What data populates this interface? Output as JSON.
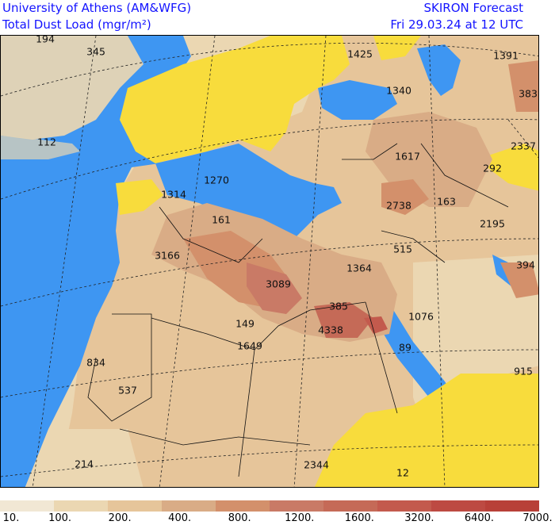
{
  "header": {
    "institution": "University of Athens (AM&WFG)",
    "product": "Total Dust Load (mgr/m²)",
    "forecast": "SKIRON Forecast",
    "valid_time": "Fri 29.03.24 at 12 UTC"
  },
  "map": {
    "labels": [
      "194",
      "345",
      "1425",
      "1391",
      "383",
      "1340",
      "112",
      "1617",
      "2337",
      "292",
      "1270",
      "1314",
      "2738",
      "163",
      "161",
      "2195",
      "3166",
      "515",
      "394",
      "1364",
      "3089",
      "385",
      "1076",
      "149",
      "4338",
      "89",
      "1649",
      "915",
      "834",
      "537",
      "214",
      "2344",
      "12"
    ]
  },
  "colorbar": {
    "ticks": [
      "10.",
      "100.",
      "200.",
      "400.",
      "800.",
      "1200.",
      "1600.",
      "3200.",
      "6400.",
      "7000."
    ],
    "colors": [
      "#f1e7d4",
      "#ebd7b2",
      "#e6c59a",
      "#d9ac86",
      "#d3906b",
      "#c97a66",
      "#c56a57",
      "#c35a4d",
      "#bd4a42",
      "#b84038"
    ]
  },
  "palette": {
    "sea": "#3e96f2",
    "low_dust": "#f8dc3c",
    "header_text": "#1414ff"
  }
}
